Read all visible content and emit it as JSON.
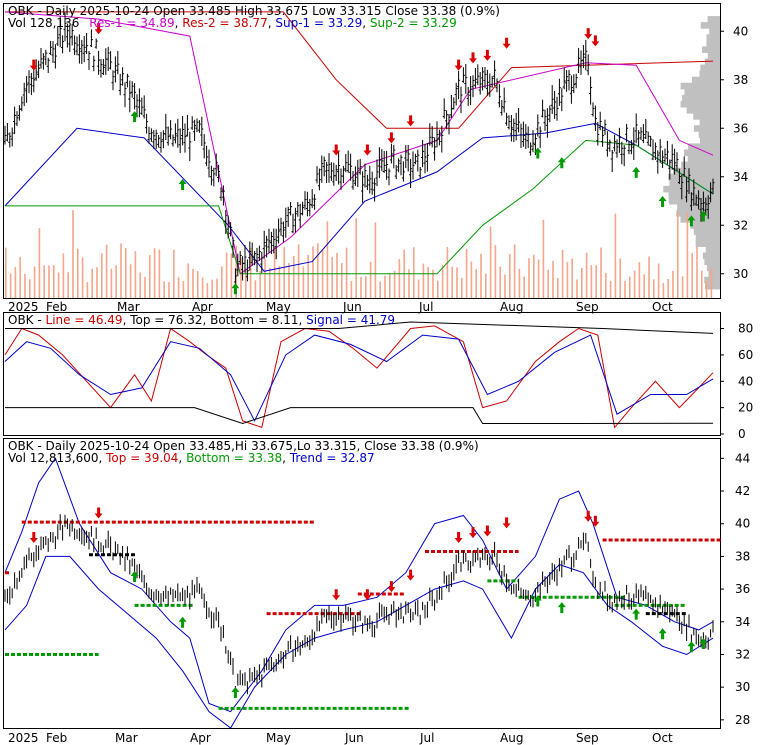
{
  "panels": {
    "top": {
      "title": "OBK - Daily 2025-10-24 Open 33.485  High 33.675  Low 33.315  Close 33.38 (0.9%)",
      "legend": [
        {
          "text": "Vol 128,136",
          "color": "#000000"
        },
        {
          "text": "Res-1 = 34.89",
          "color": "#cc00cc"
        },
        {
          "text": "Res-2 = 38.77",
          "color": "#cc0000"
        },
        {
          "text": "Sup-1 = 33.29",
          "color": "#0000cc"
        },
        {
          "text": "Sup-2 = 33.29",
          "color": "#009900"
        }
      ],
      "yticks": [
        "40",
        "38",
        "36",
        "34",
        "32",
        "30"
      ]
    },
    "middle": {
      "title_parts": [
        {
          "text": "OBK - ",
          "color": "#000000"
        },
        {
          "text": "Line = 46.49",
          "color": "#cc0000"
        },
        {
          "text": ", Top = 76.32, Bottom = 8.11, ",
          "color": "#000000"
        },
        {
          "text": "Signal = 41.79",
          "color": "#0000cc"
        }
      ],
      "yticks": [
        "80",
        "60",
        "40",
        "20",
        "0"
      ]
    },
    "bottom": {
      "title": "OBK - Daily 2025-10-24 Open 33.485,Hi 33.675,Lo 33.315, Close 33.38 (0.9%)",
      "legend": [
        {
          "text": "Vol 12,813,600",
          "color": "#000000"
        },
        {
          "text": "Top = 39.04",
          "color": "#cc0000"
        },
        {
          "text": "Bottom = 33.38",
          "color": "#009900"
        },
        {
          "text": "Trend = 32.87",
          "color": "#0000cc"
        }
      ],
      "yticks": [
        "44",
        "42",
        "40",
        "38",
        "36",
        "34",
        "32",
        "30",
        "28"
      ]
    }
  },
  "months": [
    "2025",
    "Feb",
    "Mar",
    "Apr",
    "May",
    "Jun",
    "Jul",
    "Aug",
    "Sep",
    "Oct"
  ],
  "colors": {
    "candle": "#000000",
    "up_arrow": "#009900",
    "down_arrow": "#dd0000",
    "volume": "#f4a58a",
    "profile": "#c0c0c0",
    "res1": "#cc00cc",
    "res2": "#cc0000",
    "sup1": "#0000cc",
    "sup2": "#009900",
    "osc_line": "#cc0000",
    "osc_signal": "#0000cc"
  },
  "chart_data": [
    {
      "type": "candlestick",
      "title": "OBK - Daily 2025-10-24 Open 33.485  High 33.675  Low 33.315  Close 33.38 (0.9%)",
      "x": [
        "2025-01",
        "2025-02",
        "2025-03",
        "2025-04",
        "2025-05",
        "2025-06",
        "2025-07",
        "2025-08",
        "2025-09",
        "2025-10"
      ],
      "close_path": [
        [
          "2025-01-02",
          35.2
        ],
        [
          "2025-01-10",
          37.6
        ],
        [
          "2025-01-20",
          38.9
        ],
        [
          "2025-01-28",
          40.0
        ],
        [
          "2025-02-05",
          39.4
        ],
        [
          "2025-02-14",
          38.6
        ],
        [
          "2025-02-24",
          37.4
        ],
        [
          "2025-03-03",
          36.0
        ],
        [
          "2025-03-12",
          35.5
        ],
        [
          "2025-03-24",
          35.8
        ],
        [
          "2025-04-03",
          33.4
        ],
        [
          "2025-04-08",
          30.2
        ],
        [
          "2025-04-16",
          30.5
        ],
        [
          "2025-04-28",
          32.0
        ],
        [
          "2025-05-08",
          32.8
        ],
        [
          "2025-05-15",
          34.2
        ],
        [
          "2025-05-23",
          34.4
        ],
        [
          "2025-06-02",
          33.8
        ],
        [
          "2025-06-12",
          34.6
        ],
        [
          "2025-06-23",
          34.4
        ],
        [
          "2025-07-01",
          35.6
        ],
        [
          "2025-07-10",
          37.6
        ],
        [
          "2025-07-18",
          37.8
        ],
        [
          "2025-07-25",
          38.0
        ],
        [
          "2025-08-01",
          36.2
        ],
        [
          "2025-08-08",
          35.4
        ],
        [
          "2025-08-15",
          36.4
        ],
        [
          "2025-08-25",
          37.9
        ],
        [
          "2025-09-02",
          38.8
        ],
        [
          "2025-09-05",
          36.2
        ],
        [
          "2025-09-12",
          35.3
        ],
        [
          "2025-09-22",
          35.6
        ],
        [
          "2025-10-01",
          35.0
        ],
        [
          "2025-10-08",
          34.6
        ],
        [
          "2025-10-15",
          33.4
        ],
        [
          "2025-10-20",
          32.9
        ],
        [
          "2025-10-24",
          33.38
        ]
      ],
      "res1_path": [
        [
          "2025-01-02",
          40.8
        ],
        [
          "2025-02-10",
          40.5
        ],
        [
          "2025-03-20",
          39.8
        ],
        [
          "2025-04-10",
          30.0
        ],
        [
          "2025-05-01",
          31.5
        ],
        [
          "2025-06-01",
          34.5
        ],
        [
          "2025-07-01",
          35.5
        ],
        [
          "2025-07-15",
          37.6
        ],
        [
          "2025-09-01",
          38.7
        ],
        [
          "2025-09-22",
          38.6
        ],
        [
          "2025-10-10",
          35.5
        ],
        [
          "2025-10-24",
          34.89
        ]
      ],
      "res2_path": [
        [
          "2025-01-02",
          40.8
        ],
        [
          "2025-04-28",
          40.8
        ],
        [
          "2025-05-20",
          38.0
        ],
        [
          "2025-06-10",
          36.0
        ],
        [
          "2025-07-10",
          36.0
        ],
        [
          "2025-08-01",
          38.5
        ],
        [
          "2025-10-24",
          38.77
        ]
      ],
      "sup1_path": [
        [
          "2025-01-02",
          32.8
        ],
        [
          "2025-02-01",
          36.0
        ],
        [
          "2025-03-01",
          35.6
        ],
        [
          "2025-04-05",
          32.0
        ],
        [
          "2025-04-20",
          30.1
        ],
        [
          "2025-05-10",
          30.5
        ],
        [
          "2025-06-01",
          33.0
        ],
        [
          "2025-07-01",
          34.2
        ],
        [
          "2025-07-20",
          35.6
        ],
        [
          "2025-08-15",
          35.8
        ],
        [
          "2025-09-05",
          36.2
        ],
        [
          "2025-09-22",
          35.3
        ],
        [
          "2025-10-24",
          33.29
        ]
      ],
      "sup2_path": [
        [
          "2025-01-02",
          32.8
        ],
        [
          "2025-04-01",
          32.8
        ],
        [
          "2025-04-10",
          30.0
        ],
        [
          "2025-07-01",
          30.0
        ],
        [
          "2025-07-20",
          32.0
        ],
        [
          "2025-08-10",
          33.5
        ],
        [
          "2025-09-01",
          35.5
        ],
        [
          "2025-09-22",
          35.3
        ],
        [
          "2025-10-24",
          33.29
        ]
      ],
      "ylim": [
        29.0,
        41.0
      ],
      "yticks": [
        30,
        32,
        34,
        36,
        38,
        40
      ],
      "grid": false,
      "down_arrows": [
        [
          "2025-01-14",
          38.5
        ],
        [
          "2025-02-10",
          40.0
        ],
        [
          "2025-05-20",
          35.0
        ],
        [
          "2025-06-02",
          35.0
        ],
        [
          "2025-06-12",
          35.5
        ],
        [
          "2025-06-20",
          36.2
        ],
        [
          "2025-07-10",
          38.5
        ],
        [
          "2025-07-16",
          38.8
        ],
        [
          "2025-07-22",
          38.9
        ],
        [
          "2025-07-30",
          39.4
        ],
        [
          "2025-09-02",
          39.8
        ],
        [
          "2025-09-05",
          39.5
        ]
      ],
      "up_arrows": [
        [
          "2025-02-25",
          36.5
        ],
        [
          "2025-03-17",
          33.7
        ],
        [
          "2025-04-08",
          29.4
        ],
        [
          "2025-08-12",
          35.0
        ],
        [
          "2025-08-22",
          34.6
        ],
        [
          "2025-09-22",
          34.2
        ],
        [
          "2025-10-03",
          33.0
        ],
        [
          "2025-10-15",
          32.2
        ],
        [
          "2025-10-20",
          32.4
        ]
      ]
    },
    {
      "type": "line",
      "title": "OBK - Line = 46.49, Top = 76.32, Bottom = 8.11, Signal = 41.79",
      "series": [
        {
          "name": "Line",
          "values": [
            [
              1,
              60
            ],
            [
              8,
              80
            ],
            [
              15,
              75
            ],
            [
              25,
              60
            ],
            [
              35,
              40
            ],
            [
              45,
              20
            ],
            [
              55,
              45
            ],
            [
              62,
              25
            ],
            [
              70,
              80
            ],
            [
              78,
              70
            ],
            [
              85,
              60
            ],
            [
              93,
              50
            ],
            [
              100,
              10
            ],
            [
              108,
              5
            ],
            [
              116,
              70
            ],
            [
              126,
              80
            ],
            [
              136,
              78
            ],
            [
              146,
              65
            ],
            [
              156,
              50
            ],
            [
              170,
              80
            ],
            [
              180,
              82
            ],
            [
              192,
              70
            ],
            [
              200,
              20
            ],
            [
              210,
              25
            ],
            [
              222,
              55
            ],
            [
              232,
              70
            ],
            [
              240,
              80
            ],
            [
              248,
              75
            ],
            [
              255,
              5
            ],
            [
              262,
              20
            ],
            [
              272,
              40
            ],
            [
              282,
              20
            ],
            [
              290,
              35
            ],
            [
              296,
              46.49
            ]
          ]
        },
        {
          "name": "Signal",
          "values": [
            [
              1,
              55
            ],
            [
              10,
              70
            ],
            [
              20,
              65
            ],
            [
              32,
              45
            ],
            [
              45,
              30
            ],
            [
              58,
              35
            ],
            [
              70,
              70
            ],
            [
              82,
              65
            ],
            [
              95,
              45
            ],
            [
              105,
              10
            ],
            [
              118,
              60
            ],
            [
              130,
              75
            ],
            [
              145,
              68
            ],
            [
              160,
              55
            ],
            [
              175,
              75
            ],
            [
              190,
              72
            ],
            [
              202,
              30
            ],
            [
              215,
              40
            ],
            [
              230,
              62
            ],
            [
              245,
              75
            ],
            [
              256,
              15
            ],
            [
              270,
              30
            ],
            [
              285,
              30
            ],
            [
              296,
              41.79
            ]
          ]
        },
        {
          "name": "Top",
          "values": [
            [
              1,
              80
            ],
            [
              100,
              80
            ],
            [
              140,
              80
            ],
            [
              170,
              85
            ],
            [
              250,
              80
            ],
            [
              296,
              76.32
            ]
          ]
        },
        {
          "name": "Bottom",
          "values": [
            [
              1,
              20
            ],
            [
              80,
              20
            ],
            [
              100,
              8
            ],
            [
              120,
              20
            ],
            [
              160,
              20
            ],
            [
              196,
              20
            ],
            [
              200,
              8
            ],
            [
              240,
              8
            ],
            [
              296,
              8.11
            ]
          ]
        }
      ],
      "ylim": [
        0,
        88
      ],
      "yticks": [
        0,
        20,
        40,
        60,
        80
      ],
      "grid": false
    },
    {
      "type": "candlestick",
      "title": "OBK - Daily 2025-10-24 Open 33.485,Hi 33.675,Lo 33.315, Close 33.38 (0.9%)",
      "ylim": [
        27.5,
        45.0
      ],
      "yticks": [
        28,
        30,
        32,
        34,
        36,
        38,
        40,
        42,
        44
      ],
      "upper_band": [
        [
          1,
          37.0
        ],
        [
          8,
          39.5
        ],
        [
          15,
          42.5
        ],
        [
          22,
          44.0
        ],
        [
          32,
          40.0
        ],
        [
          45,
          37.0
        ],
        [
          58,
          36.0
        ],
        [
          70,
          34.0
        ],
        [
          78,
          33.0
        ],
        [
          86,
          29.0
        ],
        [
          95,
          28.5
        ],
        [
          108,
          31.0
        ],
        [
          118,
          33.5
        ],
        [
          130,
          35.0
        ],
        [
          142,
          35.0
        ],
        [
          156,
          35.5
        ],
        [
          168,
          37.0
        ],
        [
          180,
          40.0
        ],
        [
          192,
          40.5
        ],
        [
          200,
          39.0
        ],
        [
          210,
          36.0
        ],
        [
          222,
          38.0
        ],
        [
          232,
          41.5
        ],
        [
          240,
          42.0
        ],
        [
          246,
          40.0
        ],
        [
          256,
          35.5
        ],
        [
          268,
          35.0
        ],
        [
          280,
          34.0
        ],
        [
          290,
          33.5
        ],
        [
          296,
          34.0
        ]
      ],
      "lower_band": [
        [
          1,
          33.5
        ],
        [
          10,
          35.0
        ],
        [
          18,
          38.0
        ],
        [
          28,
          38.0
        ],
        [
          40,
          36.0
        ],
        [
          52,
          34.5
        ],
        [
          64,
          33.0
        ],
        [
          75,
          31.0
        ],
        [
          86,
          28.5
        ],
        [
          95,
          27.5
        ],
        [
          105,
          30.0
        ],
        [
          118,
          32.0
        ],
        [
          130,
          33.0
        ],
        [
          142,
          33.5
        ],
        [
          156,
          34.0
        ],
        [
          168,
          35.0
        ],
        [
          180,
          36.0
        ],
        [
          192,
          36.5
        ],
        [
          200,
          36.0
        ],
        [
          212,
          33.0
        ],
        [
          222,
          36.0
        ],
        [
          232,
          37.5
        ],
        [
          242,
          37.0
        ],
        [
          252,
          35.0
        ],
        [
          262,
          34.0
        ],
        [
          275,
          32.5
        ],
        [
          285,
          32.0
        ],
        [
          296,
          33.0
        ]
      ],
      "top_level": 39.04,
      "bottom_level": 33.38,
      "trend": 32.87,
      "grid": false
    }
  ]
}
